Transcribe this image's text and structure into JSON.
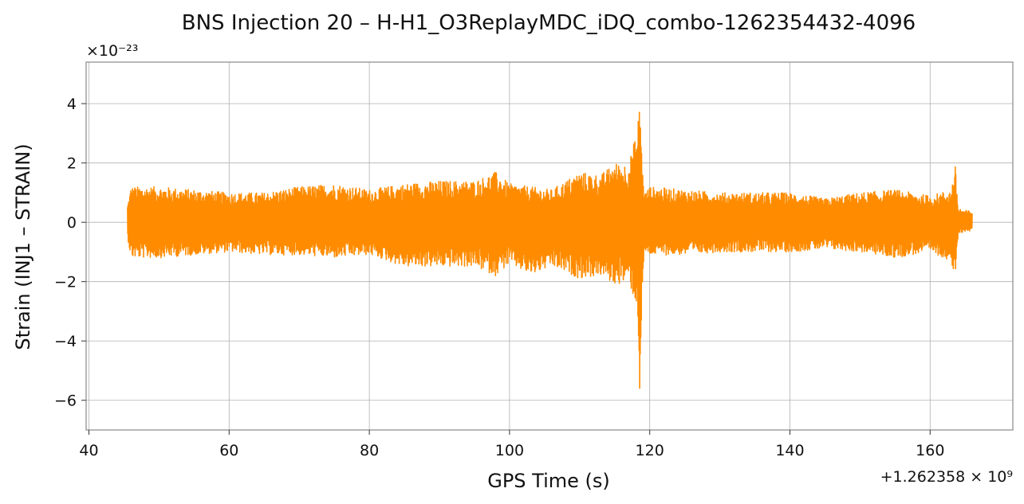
{
  "chart_data": {
    "type": "line",
    "title": "BNS Injection 20 – H-H1_O3ReplayMDC_iDQ_combo-1262354432-4096",
    "xlabel": "GPS Time (s)",
    "ylabel": "Strain (INJ1 – STRAIN)",
    "x_offset_label": "+1.262358 × 10⁹",
    "y_scale_label": "×10⁻²³",
    "xlim": [
      39.6,
      171.8
    ],
    "ylim": [
      -7.0,
      5.4
    ],
    "xticks": [
      40,
      60,
      80,
      100,
      120,
      140,
      160
    ],
    "xtick_labels": [
      "40",
      "60",
      "80",
      "100",
      "120",
      "140",
      "160"
    ],
    "yticks": [
      -6,
      -4,
      -2,
      0,
      2,
      4
    ],
    "ytick_labels": [
      "−6",
      "−4",
      "−2",
      "0",
      "2",
      "4"
    ],
    "grid": true,
    "series": [
      {
        "color": "#ff8c00",
        "envelope": {
          "x": [
            45.5,
            46,
            50,
            55,
            60,
            65,
            70,
            75,
            80,
            85,
            90,
            95,
            98,
            100,
            103,
            106,
            110,
            113,
            115,
            117,
            118.3,
            118.6,
            118.9,
            119.3,
            120,
            125,
            130,
            135,
            140,
            145,
            150,
            155,
            160,
            163,
            163.6,
            164,
            165,
            166
          ],
          "upper": [
            0.6,
            1.2,
            1.2,
            1.1,
            1.0,
            1.0,
            1.2,
            1.3,
            1.1,
            1.3,
            1.4,
            1.4,
            1.7,
            1.3,
            1.2,
            1.1,
            1.7,
            1.6,
            2.0,
            2.0,
            3.2,
            4.8,
            2.0,
            1.0,
            1.2,
            1.1,
            1.0,
            1.0,
            1.0,
            0.8,
            1.0,
            1.1,
            0.9,
            1.1,
            1.9,
            0.5,
            0.4,
            0.4
          ],
          "lower": [
            -0.5,
            -1.2,
            -1.2,
            -1.1,
            -1.0,
            -1.1,
            -1.1,
            -1.2,
            -1.1,
            -1.5,
            -1.5,
            -1.5,
            -1.8,
            -1.4,
            -1.8,
            -1.5,
            -1.9,
            -1.8,
            -2.1,
            -2.0,
            -3.0,
            -6.4,
            -2.5,
            -1.0,
            -1.1,
            -1.1,
            -1.0,
            -1.0,
            -1.0,
            -0.9,
            -1.0,
            -1.2,
            -1.0,
            -1.3,
            -2.2,
            -0.4,
            -0.3,
            -0.3
          ]
        }
      }
    ]
  }
}
